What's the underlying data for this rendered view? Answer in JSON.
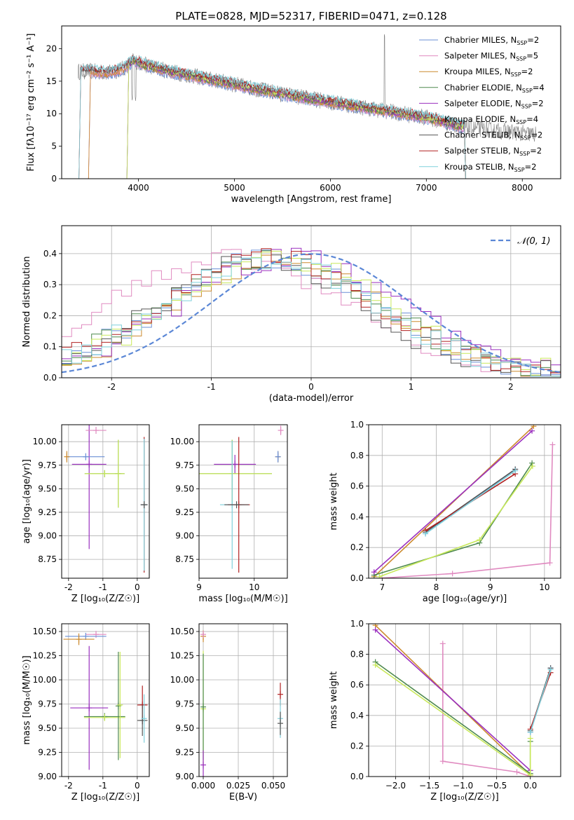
{
  "title": "PLATE=0828, MJD=52317, FIBERID=0471, z=0.128",
  "chart_data": [
    {
      "id": "spectrum",
      "type": "line",
      "xlabel": "wavelength [Angstrom, rest frame]",
      "ylabel": "Flux [fλ10⁻¹⁷ erg cm⁻² s⁻¹ A⁻¹]",
      "xlim": [
        3200,
        8400
      ],
      "ylim": [
        0,
        23.5
      ],
      "xticks": [
        4000,
        5000,
        6000,
        7000,
        8000
      ],
      "yticks": [
        0,
        5,
        10,
        15,
        20
      ],
      "grid": false,
      "legend_position": "top-right",
      "series": [
        {
          "name": "Chabrier MILES, N_SSP=2",
          "label_main": "Chabrier MILES, N",
          "sub": "SSP",
          "suffix": "=2",
          "color": "#6a8fd6",
          "start": 3500
        },
        {
          "name": "Salpeter MILES, N_SSP=5",
          "label_main": "Salpeter MILES, N",
          "sub": "SSP",
          "suffix": "=5",
          "color": "#e08ac0",
          "start": 3500
        },
        {
          "name": "Kroupa MILES, N_SSP=2",
          "label_main": "Kroupa MILES, N",
          "sub": "SSP",
          "suffix": "=2",
          "color": "#cc8a2e",
          "start": 3500
        },
        {
          "name": "Chabrier ELODIE, N_SSP=4",
          "label_main": "Chabrier ELODIE, N",
          "sub": "SSP",
          "suffix": "=4",
          "color": "#4e8a4e",
          "start": 3900
        },
        {
          "name": "Salpeter ELODIE, N_SSP=2",
          "label_main": "Salpeter ELODIE, N",
          "sub": "SSP",
          "suffix": "=2",
          "color": "#9a2fbf",
          "start": 3900
        },
        {
          "name": "Kroupa ELODIE, N_SSP=4",
          "label_main": "Kroupa ELODIE, N",
          "sub": "SSP",
          "suffix": "=4",
          "color": "#c8e85a",
          "start": 3900
        },
        {
          "name": "Chabrier STELIB, N_SSP=2",
          "label_main": "Chabrier STELIB, N",
          "sub": "SSP",
          "suffix": "=2",
          "color": "#555555",
          "start": 3400
        },
        {
          "name": "Salpeter STELIB, N_SSP=2",
          "label_main": "Salpeter STELIB, N",
          "sub": "SSP",
          "suffix": "=2",
          "color": "#b02020",
          "start": 3400
        },
        {
          "name": "Kroupa STELIB, N_SSP=2",
          "label_main": "Kroupa STELIB, N",
          "sub": "SSP",
          "suffix": "=2",
          "color": "#7fd0dc",
          "start": 3400
        }
      ],
      "continuum": [
        [
          3370,
          16.5
        ],
        [
          3500,
          16.5
        ],
        [
          3700,
          16.3
        ],
        [
          3850,
          17.0
        ],
        [
          3950,
          18.2
        ],
        [
          4050,
          17.6
        ],
        [
          4300,
          16.6
        ],
        [
          4500,
          16.0
        ],
        [
          5000,
          14.5
        ],
        [
          5500,
          13.0
        ],
        [
          6000,
          11.8
        ],
        [
          6500,
          10.6
        ],
        [
          7000,
          9.4
        ],
        [
          7400,
          7.9
        ]
      ]
    },
    {
      "id": "residuals",
      "type": "line",
      "xlabel": "(data-model)/error",
      "ylabel": "Normed distribution",
      "xlim": [
        -2.5,
        2.5
      ],
      "ylim": [
        0,
        0.49
      ],
      "xticks": [
        -2,
        -1,
        0,
        1,
        2
      ],
      "yticks": [
        0.0,
        0.1,
        0.2,
        0.3,
        0.4
      ],
      "grid": true,
      "legend_position": "top-right",
      "legend_label": "𝒩(0, 1)",
      "gaussian": {
        "mean": 0,
        "sigma": 1,
        "color": "#5b87d6"
      },
      "bins": 50
    },
    {
      "id": "age-vs-Z",
      "type": "scatter",
      "xlabel": "Z [log₁₀(Z/Z☉)]",
      "ylabel": "age  [log₁₀(age/yr)]",
      "xlim": [
        -2.2,
        0.35
      ],
      "ylim": [
        8.55,
        10.18
      ],
      "xticks": [
        -2,
        -1,
        0
      ],
      "yticks": [
        8.75,
        9.0,
        9.25,
        9.5,
        9.75,
        10.0
      ],
      "grid": true,
      "points": [
        {
          "x": -1.4,
          "y": 9.76,
          "xerr": 0.5,
          "yerr": 0.9,
          "color": "#9a2fbf"
        },
        {
          "x": -1.2,
          "y": 10.12,
          "xerr": 0.3,
          "yerr": 0.0,
          "color": "#e08ac0"
        },
        {
          "x": -1.5,
          "y": 9.84,
          "xerr": 0.55,
          "yerr": 0.0,
          "color": "#6a8fd6"
        },
        {
          "x": -2.05,
          "y": 9.84,
          "xerr": 0.0,
          "yerr": 0.06,
          "color": "#cc8a2e"
        },
        {
          "x": -0.95,
          "y": 9.66,
          "xerr": 0.58,
          "yerr": 0.0,
          "color": "#4e8a4e"
        },
        {
          "x": -0.95,
          "y": 9.66,
          "xerr": 0.58,
          "yerr": 0.0,
          "color": "#c8e85a"
        },
        {
          "x": -0.55,
          "y": 9.66,
          "xerr": 0.0,
          "yerr": 0.36,
          "color": "#4e8a4e"
        },
        {
          "x": -0.55,
          "y": 9.66,
          "xerr": 0.0,
          "yerr": 0.36,
          "color": "#c8e85a"
        },
        {
          "x": 0.2,
          "y": 9.33,
          "xerr": 0.1,
          "yerr": 0.72,
          "color": "#b02020"
        },
        {
          "x": 0.2,
          "y": 9.33,
          "xerr": 0.1,
          "yerr": 0.7,
          "color": "#7fd0dc"
        },
        {
          "x": 0.2,
          "y": 9.33,
          "xerr": 0.1,
          "yerr": 0.0,
          "color": "#555555"
        }
      ]
    },
    {
      "id": "age-vs-mass",
      "type": "scatter",
      "xlabel": "mass [log₁₀(M/M☉)]",
      "ylabel": "",
      "xlim": [
        9.0,
        10.6
      ],
      "ylim": [
        8.55,
        10.18
      ],
      "xticks": [
        9,
        10
      ],
      "yticks": [
        8.75,
        9.0,
        9.25,
        9.5,
        9.75,
        10.0
      ],
      "grid": true,
      "points": [
        {
          "x": 9.65,
          "y": 9.76,
          "xerr": 0.38,
          "yerr": 0.1,
          "color": "#9a2fbf"
        },
        {
          "x": 10.48,
          "y": 10.12,
          "xerr": 0.0,
          "yerr": 0.05,
          "color": "#e08ac0"
        },
        {
          "x": 10.43,
          "y": 9.84,
          "xerr": 0.03,
          "yerr": 0.06,
          "color": "#cc8a2e"
        },
        {
          "x": 10.43,
          "y": 9.84,
          "xerr": 0.0,
          "yerr": 0.06,
          "color": "#6a8fd6"
        },
        {
          "x": 9.6,
          "y": 9.66,
          "xerr": 0.72,
          "yerr": 0.36,
          "color": "#4e8a4e"
        },
        {
          "x": 9.6,
          "y": 9.66,
          "xerr": 0.72,
          "yerr": 0.36,
          "color": "#c8e85a"
        },
        {
          "x": 9.6,
          "y": 9.33,
          "xerr": 0.22,
          "yerr": 0.68,
          "color": "#7fd0dc"
        },
        {
          "x": 9.72,
          "y": 9.33,
          "xerr": 0.2,
          "yerr": 0.72,
          "color": "#b02020"
        },
        {
          "x": 9.68,
          "y": 9.33,
          "xerr": 0.22,
          "yerr": 0.0,
          "color": "#555555"
        }
      ]
    },
    {
      "id": "mass-weight-vs-age",
      "type": "line",
      "xlabel": "age  [log₁₀(age/yr)]",
      "ylabel": "mass weight",
      "xlim": [
        6.75,
        10.3
      ],
      "ylim": [
        0,
        1.0
      ],
      "xticks": [
        7,
        8,
        9,
        10
      ],
      "yticks": [
        0.0,
        0.2,
        0.4,
        0.6,
        0.8,
        1.0
      ],
      "grid": true,
      "series": [
        {
          "color": "#6a8fd6",
          "x": [
            7.8,
            9.46
          ],
          "y": [
            0.29,
            0.71
          ]
        },
        {
          "color": "#e08ac0",
          "x": [
            6.95,
            8.3,
            10.1,
            10.15
          ],
          "y": [
            0.0,
            0.03,
            0.1,
            0.87
          ]
        },
        {
          "color": "#cc8a2e",
          "x": [
            6.85,
            9.8
          ],
          "y": [
            0.01,
            0.99
          ]
        },
        {
          "color": "#4e8a4e",
          "x": [
            6.85,
            8.8,
            9.77
          ],
          "y": [
            0.02,
            0.23,
            0.75
          ]
        },
        {
          "color": "#9a2fbf",
          "x": [
            6.85,
            9.77
          ],
          "y": [
            0.04,
            0.96
          ]
        },
        {
          "color": "#c8e85a",
          "x": [
            6.95,
            8.8,
            9.78
          ],
          "y": [
            0.01,
            0.25,
            0.73
          ]
        },
        {
          "color": "#555555",
          "x": [
            7.8,
            9.46
          ],
          "y": [
            0.3,
            0.71
          ]
        },
        {
          "color": "#b02020",
          "x": [
            7.8,
            9.46
          ],
          "y": [
            0.31,
            0.68
          ]
        },
        {
          "color": "#7fd0dc",
          "x": [
            7.8,
            9.46
          ],
          "y": [
            0.29,
            0.7
          ]
        }
      ]
    },
    {
      "id": "mass-vs-Z",
      "type": "scatter",
      "xlabel": "Z [log₁₀(Z/Z☉)]",
      "ylabel": "mass [log₁₀(M/M☉)]",
      "xlim": [
        -2.2,
        0.35
      ],
      "ylim": [
        9.0,
        10.58
      ],
      "xticks": [
        -2,
        -1,
        0
      ],
      "yticks": [
        9.0,
        9.25,
        9.5,
        9.75,
        10.0,
        10.25,
        10.5
      ],
      "grid": true,
      "points": [
        {
          "x": -1.4,
          "y": 9.71,
          "xerr": 0.55,
          "yerr": 0.64,
          "color": "#9a2fbf"
        },
        {
          "x": -1.2,
          "y": 10.47,
          "xerr": 0.3,
          "yerr": 0.0,
          "color": "#e08ac0"
        },
        {
          "x": -1.5,
          "y": 10.45,
          "xerr": 0.6,
          "yerr": 0.0,
          "color": "#6a8fd6"
        },
        {
          "x": -1.7,
          "y": 10.42,
          "xerr": 0.45,
          "yerr": 0.06,
          "color": "#cc8a2e"
        },
        {
          "x": -0.95,
          "y": 9.62,
          "xerr": 0.6,
          "yerr": 0.0,
          "color": "#4e8a4e"
        },
        {
          "x": -0.95,
          "y": 9.61,
          "xerr": 0.6,
          "yerr": 0.0,
          "color": "#c8e85a"
        },
        {
          "x": -0.55,
          "y": 9.73,
          "xerr": 0.0,
          "yerr": 0.56,
          "color": "#4e8a4e"
        },
        {
          "x": -0.5,
          "y": 9.74,
          "xerr": 0.0,
          "yerr": 0.55,
          "color": "#c8e85a"
        },
        {
          "x": 0.15,
          "y": 9.74,
          "xerr": 0.15,
          "yerr": 0.2,
          "color": "#b02020"
        },
        {
          "x": 0.15,
          "y": 9.58,
          "xerr": 0.15,
          "yerr": 0.16,
          "color": "#555555"
        },
        {
          "x": 0.2,
          "y": 9.6,
          "xerr": 0.0,
          "yerr": 0.25,
          "color": "#7fd0dc"
        }
      ]
    },
    {
      "id": "mass-vs-EBV",
      "type": "scatter",
      "xlabel": "E(B-V)",
      "ylabel": "",
      "xlim": [
        -0.003,
        0.06
      ],
      "ylim": [
        9.0,
        10.58
      ],
      "xticks": [
        0.0,
        0.025,
        0.05
      ],
      "tick_labels": [
        "0.000",
        "0.025",
        "0.050"
      ],
      "yticks": [
        9.0,
        9.25,
        9.5,
        9.75,
        10.0,
        10.25,
        10.5
      ],
      "grid": true,
      "points": [
        {
          "x": 0.0,
          "y": 10.45,
          "xerr": 0,
          "yerr": 0.06,
          "color": "#cc8a2e"
        },
        {
          "x": 0.0,
          "y": 10.47,
          "xerr": 0,
          "yerr": 0.0,
          "color": "#e08ac0"
        },
        {
          "x": 0.0,
          "y": 9.7,
          "xerr": 0,
          "yerr": 0.6,
          "color": "#c8e85a"
        },
        {
          "x": 0.0,
          "y": 9.72,
          "xerr": 0,
          "yerr": 0.55,
          "color": "#4e8a4e"
        },
        {
          "x": 0.0,
          "y": 9.12,
          "xerr": 0,
          "yerr": 0.15,
          "color": "#9a2fbf"
        },
        {
          "x": 0.055,
          "y": 9.85,
          "xerr": 0,
          "yerr": 0.12,
          "color": "#b02020"
        },
        {
          "x": 0.055,
          "y": 9.6,
          "xerr": 0,
          "yerr": 0.2,
          "color": "#7fd0dc"
        },
        {
          "x": 0.055,
          "y": 9.55,
          "xerr": 0,
          "yerr": 0.12,
          "color": "#555555"
        }
      ]
    },
    {
      "id": "mass-weight-vs-Z",
      "type": "line",
      "xlabel": "Z [log₁₀(Z/Z☉)]",
      "ylabel": "mass weight",
      "xlim": [
        -2.4,
        0.45
      ],
      "ylim": [
        0,
        1.0
      ],
      "xticks": [
        -2.0,
        -1.5,
        -1.0,
        -0.5,
        0.0
      ],
      "tick_labels": [
        "−2.0",
        "−1.5",
        "−1.0",
        "−0.5",
        "0.0"
      ],
      "yticks": [
        0.0,
        0.2,
        0.4,
        0.6,
        0.8,
        1.0
      ],
      "grid": true,
      "series": [
        {
          "color": "#6a8fd6",
          "x": [
            0.0,
            0.3
          ],
          "y": [
            0.29,
            0.71
          ]
        },
        {
          "color": "#e08ac0",
          "x": [
            -1.3,
            -1.3,
            -0.2,
            0.0
          ],
          "y": [
            0.87,
            0.1,
            0.03,
            0.0
          ]
        },
        {
          "color": "#cc8a2e",
          "x": [
            -2.3,
            0.0
          ],
          "y": [
            0.99,
            0.01
          ]
        },
        {
          "color": "#4e8a4e",
          "x": [
            -2.3,
            0.0,
            0.0
          ],
          "y": [
            0.75,
            0.02,
            0.23
          ]
        },
        {
          "color": "#9a2fbf",
          "x": [
            -2.3,
            0.0
          ],
          "y": [
            0.96,
            0.04
          ]
        },
        {
          "color": "#c8e85a",
          "x": [
            -2.3,
            0.0,
            0.0
          ],
          "y": [
            0.73,
            0.01,
            0.25
          ]
        },
        {
          "color": "#555555",
          "x": [
            0.0,
            0.3
          ],
          "y": [
            0.3,
            0.71
          ]
        },
        {
          "color": "#b02020",
          "x": [
            0.0,
            0.3
          ],
          "y": [
            0.31,
            0.68
          ]
        },
        {
          "color": "#7fd0dc",
          "x": [
            0.0,
            0.3
          ],
          "y": [
            0.29,
            0.7
          ]
        }
      ]
    }
  ]
}
